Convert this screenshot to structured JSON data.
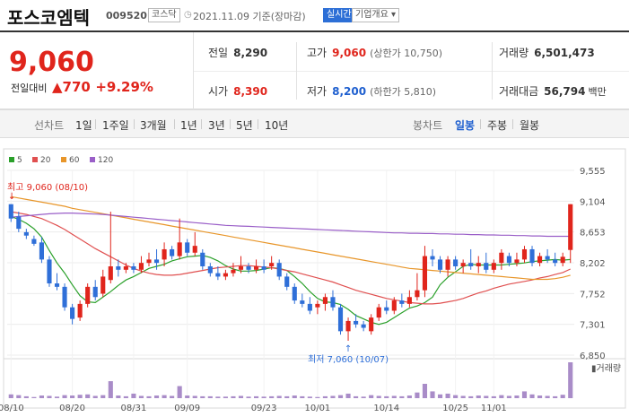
{
  "header": {
    "name": "포스코엠텍",
    "code": "009520",
    "market": "코스닥",
    "date": "2021.11.09 기준(장마감)",
    "live_label": "실시간",
    "info_label": "기업개요 ▾"
  },
  "quote": {
    "current": "9,060",
    "diff_label": "전일대비",
    "diff": "▲770",
    "diff_pct": "+9.29%",
    "prev_label": "전일",
    "prev": "8,290",
    "high_label": "고가",
    "high": "9,060",
    "upper_limit": "(상한가 10,750)",
    "volume_label": "거래량",
    "volume": "6,501,473",
    "open_label": "시가",
    "open": "8,390",
    "low_label": "저가",
    "low": "8,200",
    "lower_limit": "(하한가 5,810)",
    "amount_label": "거래대금",
    "amount": "56,794",
    "amount_unit": "백만"
  },
  "periods": {
    "line_label": "선차트",
    "line_items": [
      "1일",
      "1주일",
      "3개월",
      "1년",
      "3년",
      "5년",
      "10년"
    ],
    "candle_label": "봉차트",
    "candle_items": [
      "일봉",
      "주봉",
      "월봉"
    ],
    "active_candle": "일봉"
  },
  "legend": [
    {
      "label": "5",
      "color": "#2aa02a"
    },
    {
      "label": "20",
      "color": "#e05050"
    },
    {
      "label": "60",
      "color": "#e8962a"
    },
    {
      "label": "120",
      "color": "#9a5fc8"
    }
  ],
  "chart_data": {
    "type": "candlestick",
    "up_color": "#e0251c",
    "down_color": "#2f6fd8",
    "y_ticks": [
      "9,555",
      "9,104",
      "8,653",
      "8,202",
      "7,752",
      "7,301",
      "6,850"
    ],
    "ylim": [
      6850,
      9555
    ],
    "x_ticks": [
      "08/10",
      "08/20",
      "08/31",
      "09/09",
      "09/23",
      "10/01",
      "10/14",
      "10/25",
      "11/01"
    ],
    "volume_label": "거래량",
    "high_annotation": "최고 9,060 (08/10)",
    "low_annotation": "최저 7,060 (10/07)",
    "candles": [
      {
        "o": 9060,
        "h": 9060,
        "l": 8800,
        "c": 8850,
        "v": 0.1
      },
      {
        "o": 8880,
        "h": 8950,
        "l": 8650,
        "c": 8700,
        "v": 0.08
      },
      {
        "o": 8650,
        "h": 8700,
        "l": 8550,
        "c": 8600,
        "v": 0.05
      },
      {
        "o": 8550,
        "h": 8600,
        "l": 8450,
        "c": 8480,
        "v": 0.03
      },
      {
        "o": 8500,
        "h": 8580,
        "l": 8200,
        "c": 8250,
        "v": 0.07
      },
      {
        "o": 8250,
        "h": 8300,
        "l": 7850,
        "c": 7900,
        "v": 0.06
      },
      {
        "o": 7900,
        "h": 8050,
        "l": 7800,
        "c": 7850,
        "v": 0.04
      },
      {
        "o": 7850,
        "h": 7900,
        "l": 7500,
        "c": 7550,
        "v": 0.08
      },
      {
        "o": 7550,
        "h": 7600,
        "l": 7300,
        "c": 7380,
        "v": 0.07
      },
      {
        "o": 7400,
        "h": 7650,
        "l": 7350,
        "c": 7600,
        "v": 0.09
      },
      {
        "o": 7600,
        "h": 7900,
        "l": 7550,
        "c": 7850,
        "v": 0.1
      },
      {
        "o": 7850,
        "h": 7950,
        "l": 7650,
        "c": 7700,
        "v": 0.06
      },
      {
        "o": 7750,
        "h": 8100,
        "l": 7700,
        "c": 8000,
        "v": 0.08
      },
      {
        "o": 7950,
        "h": 8950,
        "l": 7900,
        "c": 8150,
        "v": 0.45
      },
      {
        "o": 8150,
        "h": 8250,
        "l": 8000,
        "c": 8100,
        "v": 0.07
      },
      {
        "o": 8100,
        "h": 8200,
        "l": 8050,
        "c": 8150,
        "v": 0.05
      },
      {
        "o": 8150,
        "h": 8200,
        "l": 8050,
        "c": 8100,
        "v": 0.12
      },
      {
        "o": 8100,
        "h": 8300,
        "l": 8050,
        "c": 8200,
        "v": 0.06
      },
      {
        "o": 8200,
        "h": 8350,
        "l": 8150,
        "c": 8250,
        "v": 0.05
      },
      {
        "o": 8250,
        "h": 8400,
        "l": 8100,
        "c": 8200,
        "v": 0.07
      },
      {
        "o": 8250,
        "h": 8500,
        "l": 8150,
        "c": 8400,
        "v": 0.08
      },
      {
        "o": 8400,
        "h": 8450,
        "l": 8250,
        "c": 8300,
        "v": 0.06
      },
      {
        "o": 8300,
        "h": 8850,
        "l": 8250,
        "c": 8500,
        "v": 0.32
      },
      {
        "o": 8500,
        "h": 8550,
        "l": 8300,
        "c": 8350,
        "v": 0.07
      },
      {
        "o": 8350,
        "h": 8650,
        "l": 8300,
        "c": 8450,
        "v": 0.06
      },
      {
        "o": 8350,
        "h": 8400,
        "l": 8100,
        "c": 8150,
        "v": 0.05
      },
      {
        "o": 8150,
        "h": 8200,
        "l": 8000,
        "c": 8050,
        "v": 0.05
      },
      {
        "o": 8050,
        "h": 8150,
        "l": 7950,
        "c": 8000,
        "v": 0.04
      },
      {
        "o": 8000,
        "h": 8100,
        "l": 7950,
        "c": 8050,
        "v": 0.04
      },
      {
        "o": 8050,
        "h": 8200,
        "l": 8000,
        "c": 8100,
        "v": 0.05
      },
      {
        "o": 8100,
        "h": 8300,
        "l": 8050,
        "c": 8150,
        "v": 0.06
      },
      {
        "o": 8150,
        "h": 8200,
        "l": 8050,
        "c": 8100,
        "v": 0.04
      },
      {
        "o": 8100,
        "h": 8250,
        "l": 8050,
        "c": 8150,
        "v": 0.05
      },
      {
        "o": 8150,
        "h": 8250,
        "l": 8050,
        "c": 8100,
        "v": 0.04
      },
      {
        "o": 8150,
        "h": 8300,
        "l": 8100,
        "c": 8200,
        "v": 0.05
      },
      {
        "o": 8200,
        "h": 8250,
        "l": 7950,
        "c": 8000,
        "v": 0.06
      },
      {
        "o": 8000,
        "h": 8050,
        "l": 7800,
        "c": 7850,
        "v": 0.05
      },
      {
        "o": 7850,
        "h": 7900,
        "l": 7600,
        "c": 7650,
        "v": 0.07
      },
      {
        "o": 7650,
        "h": 7750,
        "l": 7550,
        "c": 7600,
        "v": 0.05
      },
      {
        "o": 7600,
        "h": 7700,
        "l": 7450,
        "c": 7500,
        "v": 0.04
      },
      {
        "o": 7550,
        "h": 7650,
        "l": 7450,
        "c": 7600,
        "v": 0.03
      },
      {
        "o": 7600,
        "h": 7750,
        "l": 7500,
        "c": 7700,
        "v": 0.05
      },
      {
        "o": 7700,
        "h": 7800,
        "l": 7500,
        "c": 7550,
        "v": 0.06
      },
      {
        "o": 7550,
        "h": 7600,
        "l": 7150,
        "c": 7200,
        "v": 0.08
      },
      {
        "o": 7200,
        "h": 7400,
        "l": 7060,
        "c": 7350,
        "v": 0.12
      },
      {
        "o": 7350,
        "h": 7450,
        "l": 7250,
        "c": 7300,
        "v": 0.05
      },
      {
        "o": 7300,
        "h": 7350,
        "l": 7200,
        "c": 7250,
        "v": 0.04
      },
      {
        "o": 7200,
        "h": 7450,
        "l": 7150,
        "c": 7400,
        "v": 0.08
      },
      {
        "o": 7400,
        "h": 7600,
        "l": 7350,
        "c": 7550,
        "v": 0.06
      },
      {
        "o": 7550,
        "h": 7650,
        "l": 7450,
        "c": 7500,
        "v": 0.05
      },
      {
        "o": 7500,
        "h": 7700,
        "l": 7450,
        "c": 7650,
        "v": 0.06
      },
      {
        "o": 7650,
        "h": 7750,
        "l": 7550,
        "c": 7600,
        "v": 0.05
      },
      {
        "o": 7600,
        "h": 7800,
        "l": 7550,
        "c": 7700,
        "v": 0.07
      },
      {
        "o": 7700,
        "h": 8050,
        "l": 7650,
        "c": 7800,
        "v": 0.15
      },
      {
        "o": 7800,
        "h": 8450,
        "l": 7700,
        "c": 8300,
        "v": 0.38
      },
      {
        "o": 8300,
        "h": 8400,
        "l": 8150,
        "c": 8250,
        "v": 0.18
      },
      {
        "o": 8250,
        "h": 8300,
        "l": 8050,
        "c": 8100,
        "v": 0.1
      },
      {
        "o": 8100,
        "h": 8300,
        "l": 8000,
        "c": 8250,
        "v": 0.12
      },
      {
        "o": 8250,
        "h": 8300,
        "l": 8100,
        "c": 8150,
        "v": 0.08
      },
      {
        "o": 8150,
        "h": 8250,
        "l": 8050,
        "c": 8200,
        "v": 0.06
      },
      {
        "o": 8200,
        "h": 8400,
        "l": 8100,
        "c": 8150,
        "v": 0.05
      },
      {
        "o": 8150,
        "h": 8300,
        "l": 8050,
        "c": 8200,
        "v": 0.07
      },
      {
        "o": 8200,
        "h": 8350,
        "l": 8050,
        "c": 8100,
        "v": 0.06
      },
      {
        "o": 8100,
        "h": 8250,
        "l": 8050,
        "c": 8200,
        "v": 0.05
      },
      {
        "o": 8200,
        "h": 8400,
        "l": 8100,
        "c": 8350,
        "v": 0.08
      },
      {
        "o": 8300,
        "h": 8350,
        "l": 8150,
        "c": 8200,
        "v": 0.06
      },
      {
        "o": 8200,
        "h": 8350,
        "l": 8150,
        "c": 8250,
        "v": 0.07
      },
      {
        "o": 8250,
        "h": 8450,
        "l": 8200,
        "c": 8400,
        "v": 0.18
      },
      {
        "o": 8400,
        "h": 8450,
        "l": 8150,
        "c": 8200,
        "v": 0.1
      },
      {
        "o": 8200,
        "h": 8350,
        "l": 8150,
        "c": 8300,
        "v": 0.07
      },
      {
        "o": 8300,
        "h": 8400,
        "l": 8200,
        "c": 8250,
        "v": 0.06
      },
      {
        "o": 8250,
        "h": 8350,
        "l": 8150,
        "c": 8200,
        "v": 0.05
      },
      {
        "o": 8200,
        "h": 8350,
        "l": 8150,
        "c": 8290,
        "v": 0.09
      },
      {
        "o": 8390,
        "h": 9060,
        "l": 8200,
        "c": 9060,
        "v": 0.95
      }
    ],
    "ma": {
      "5": [
        8880,
        8840,
        8780,
        8700,
        8580,
        8380,
        8200,
        8050,
        7880,
        7720,
        7630,
        7620,
        7700,
        7780,
        7870,
        7950,
        8000,
        8060,
        8120,
        8150,
        8180,
        8230,
        8260,
        8290,
        8300,
        8310,
        8280,
        8230,
        8160,
        8110,
        8080,
        8080,
        8090,
        8110,
        8130,
        8120,
        8090,
        8000,
        7900,
        7780,
        7680,
        7630,
        7620,
        7590,
        7520,
        7430,
        7380,
        7330,
        7300,
        7330,
        7400,
        7470,
        7540,
        7570,
        7620,
        7700,
        7880,
        7990,
        8070,
        8150,
        8180,
        8170,
        8170,
        8170,
        8170,
        8180,
        8190,
        8200,
        8220,
        8230,
        8240,
        8250,
        8240,
        8250
      ],
      "20": [
        8950,
        8930,
        8910,
        8880,
        8850,
        8800,
        8750,
        8690,
        8620,
        8550,
        8480,
        8410,
        8350,
        8290,
        8230,
        8170,
        8120,
        8080,
        8050,
        8030,
        8020,
        8020,
        8030,
        8050,
        8070,
        8090,
        8110,
        8130,
        8140,
        8150,
        8160,
        8160,
        8150,
        8140,
        8130,
        8110,
        8090,
        8070,
        8040,
        8010,
        7980,
        7950,
        7920,
        7880,
        7840,
        7800,
        7770,
        7740,
        7710,
        7680,
        7660,
        7640,
        7620,
        7610,
        7600,
        7600,
        7610,
        7630,
        7650,
        7680,
        7720,
        7760,
        7790,
        7830,
        7860,
        7890,
        7910,
        7930,
        7950,
        7980,
        8000,
        8030,
        8060,
        8110
      ],
      "60": [
        9170,
        9150,
        9130,
        9110,
        9090,
        9070,
        9050,
        9030,
        9000,
        8980,
        8960,
        8940,
        8920,
        8900,
        8880,
        8860,
        8840,
        8820,
        8800,
        8780,
        8760,
        8740,
        8720,
        8700,
        8680,
        8660,
        8640,
        8620,
        8600,
        8580,
        8560,
        8540,
        8520,
        8500,
        8480,
        8460,
        8440,
        8420,
        8400,
        8380,
        8360,
        8340,
        8320,
        8300,
        8280,
        8260,
        8240,
        8220,
        8200,
        8180,
        8160,
        8140,
        8120,
        8110,
        8100,
        8090,
        8080,
        8070,
        8060,
        8050,
        8040,
        8030,
        8020,
        8010,
        8000,
        7990,
        7980,
        7970,
        7960,
        7960,
        7960,
        7970,
        7990,
        8020
      ],
      "120": [
        8870,
        8880,
        8890,
        8900,
        8910,
        8920,
        8925,
        8930,
        8930,
        8925,
        8920,
        8915,
        8910,
        8900,
        8890,
        8880,
        8870,
        8860,
        8850,
        8840,
        8830,
        8820,
        8810,
        8800,
        8790,
        8780,
        8770,
        8760,
        8750,
        8745,
        8740,
        8735,
        8730,
        8725,
        8720,
        8715,
        8710,
        8705,
        8700,
        8695,
        8690,
        8685,
        8680,
        8675,
        8670,
        8665,
        8660,
        8655,
        8650,
        8645,
        8640,
        8640,
        8635,
        8635,
        8630,
        8630,
        8625,
        8625,
        8620,
        8620,
        8615,
        8615,
        8610,
        8610,
        8605,
        8605,
        8600,
        8600,
        8595,
        8595,
        8590,
        8590,
        8590,
        8590
      ]
    }
  }
}
